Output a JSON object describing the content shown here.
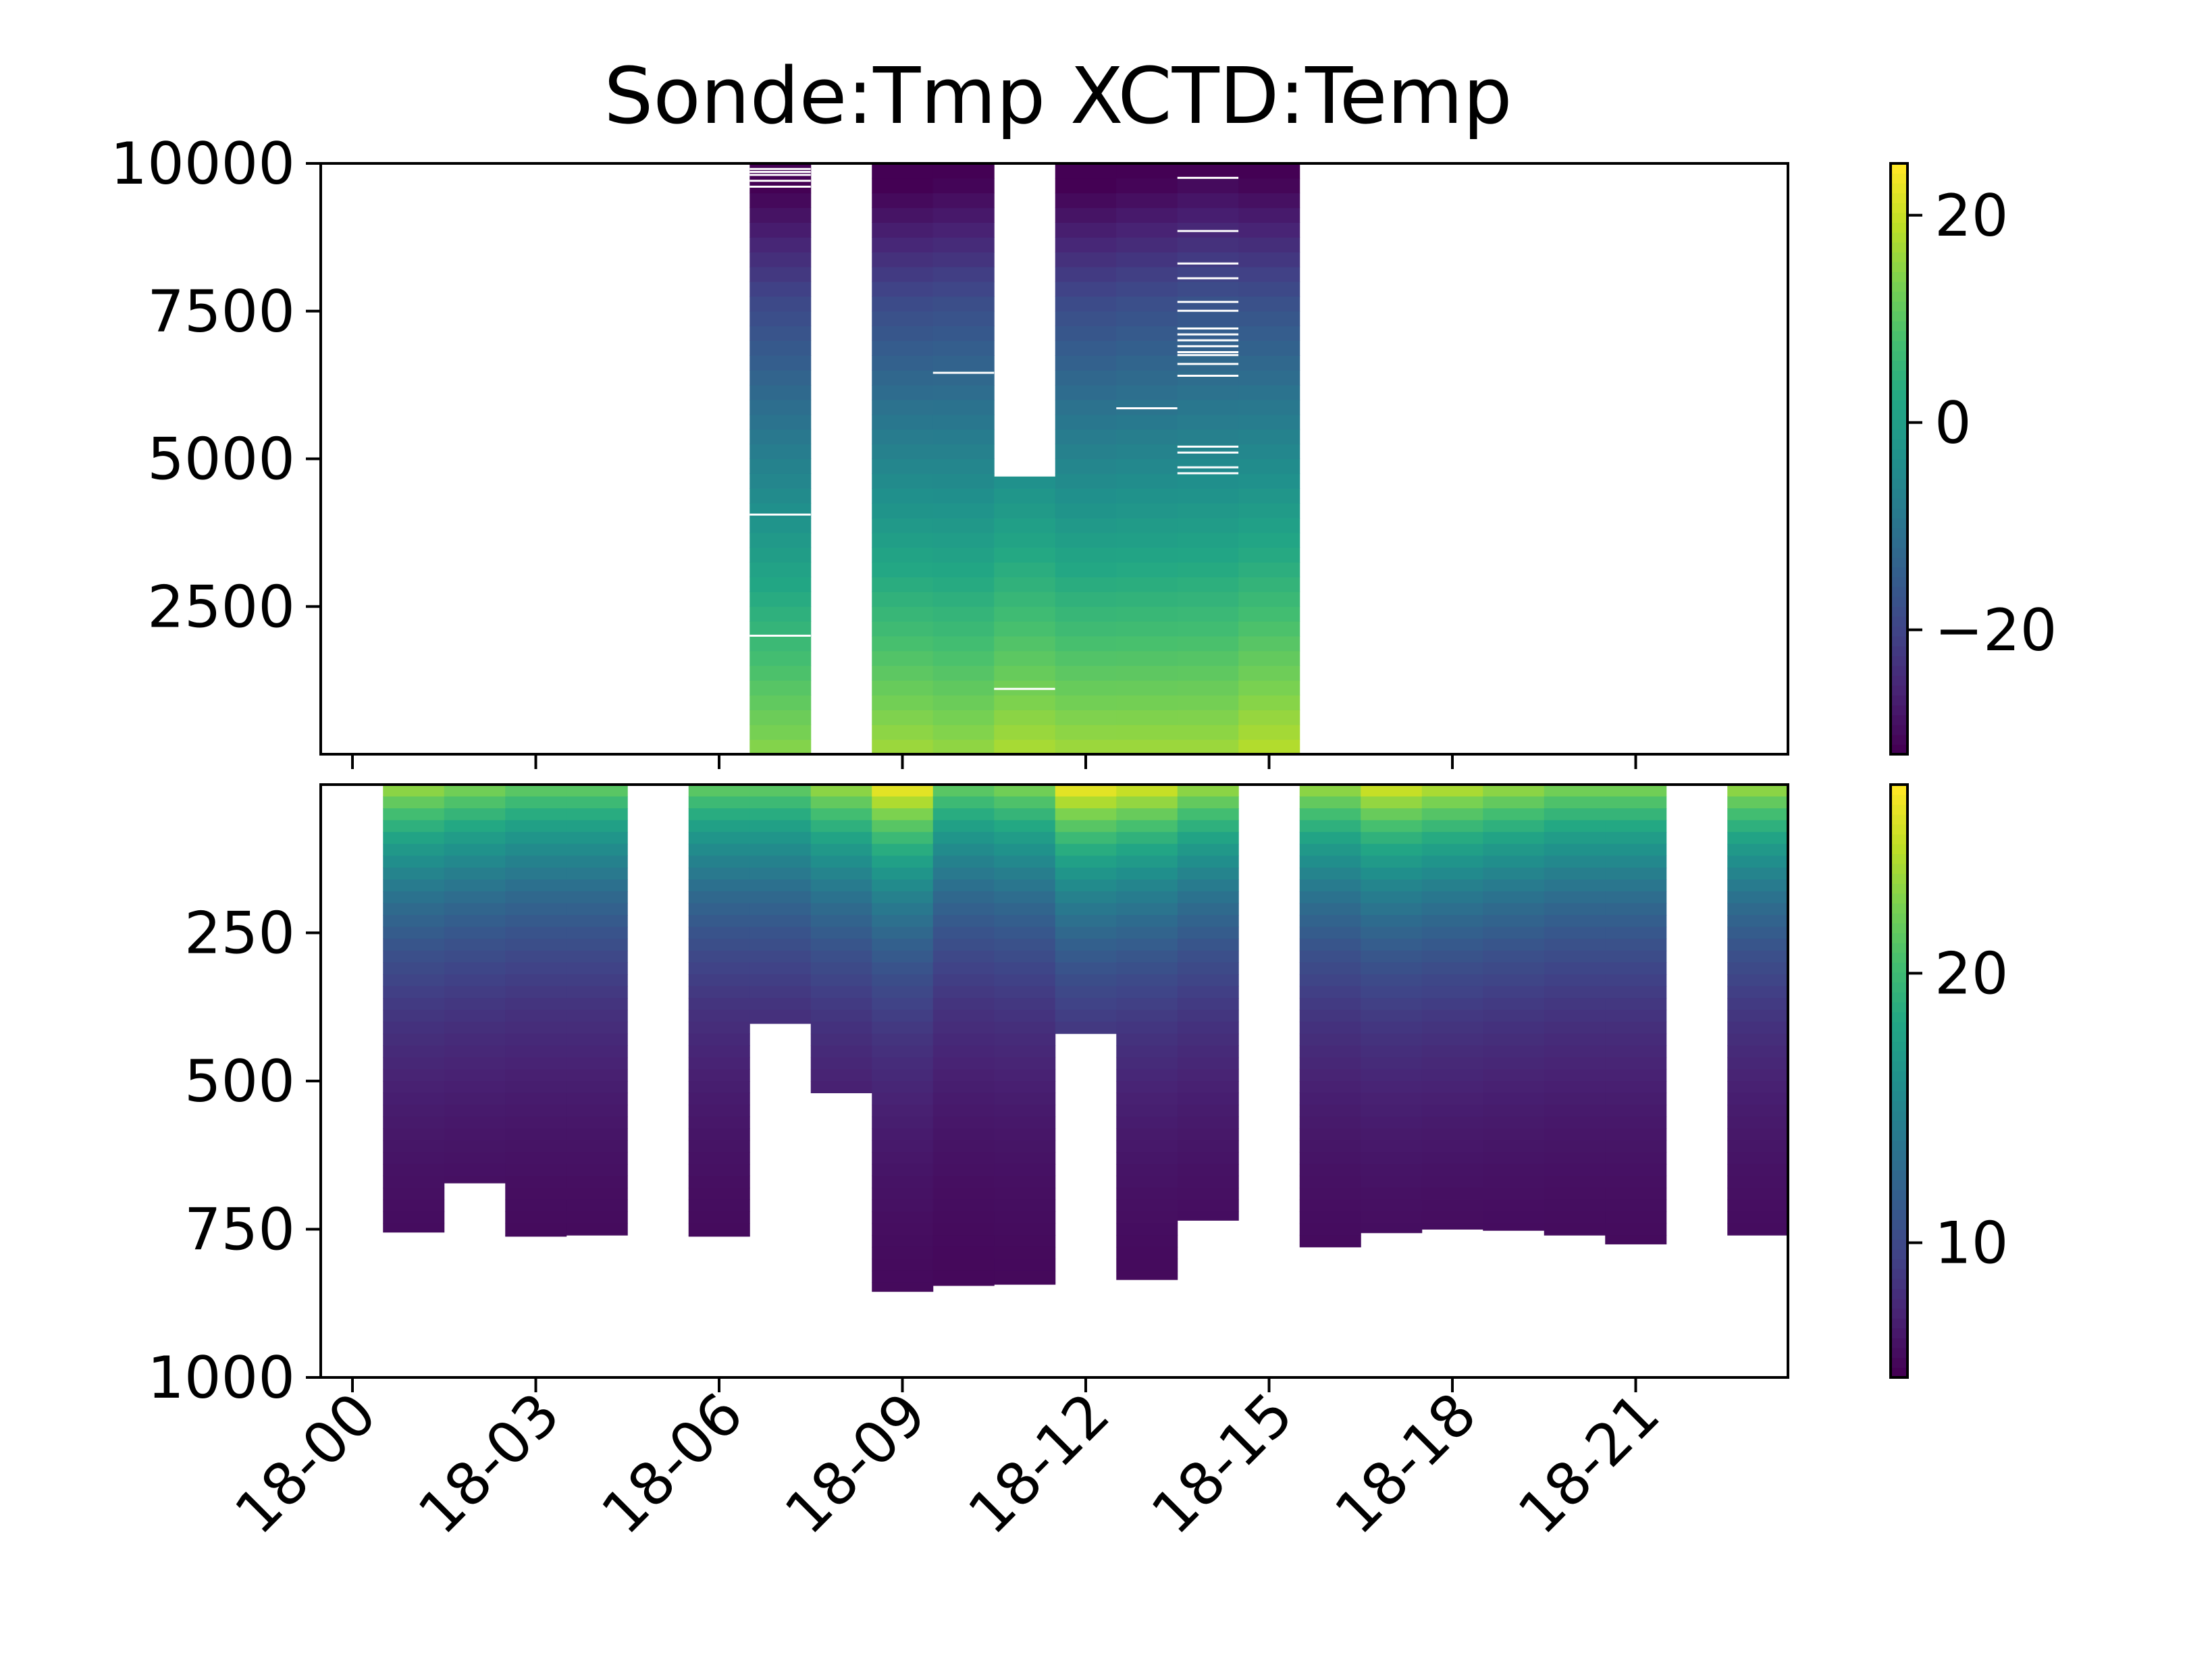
{
  "figure": {
    "title": "Sonde:Tmp XCTD:Temp"
  },
  "chart_data": [
    {
      "type": "heatmap",
      "name": "Sonde:Tmp",
      "colormap": "viridis",
      "x": [
        "18-00",
        "18-01",
        "18-02",
        "18-03",
        "18-04",
        "18-05",
        "18-06",
        "18-07",
        "18-08",
        "18-09",
        "18-10",
        "18-11",
        "18-12",
        "18-13",
        "18-14",
        "18-15",
        "18-16",
        "18-17",
        "18-18",
        "18-19",
        "18-20",
        "18-21",
        "18-22",
        "18-23"
      ],
      "x_tick_labels": [
        "18-00",
        "18-03",
        "18-06",
        "18-09",
        "18-12",
        "18-15",
        "18-18",
        "18-21"
      ],
      "ylim": [
        0,
        10000
      ],
      "y_ticks": [
        2500,
        5000,
        7500,
        10000
      ],
      "clim": [
        -32,
        25
      ],
      "colorbar_ticks": [
        -20,
        0,
        20
      ],
      "profiles": [
        {
          "x": "18-07",
          "top": 10000,
          "surface": 15,
          "lapse": 0.0045,
          "gaps": [
            4050,
            2000,
            9600,
            9700,
            9800,
            9850,
            9900
          ]
        },
        {
          "x": "18-09",
          "top": 10000,
          "surface": 17,
          "lapse": 0.0047,
          "gaps": []
        },
        {
          "x": "18-10",
          "top": 10000,
          "surface": 16,
          "lapse": 0.0045,
          "gaps": [
            6450
          ]
        },
        {
          "x": "18-11",
          "top": 4700,
          "surface": 18,
          "lapse": 0.0046,
          "gaps": [
            1100
          ]
        },
        {
          "x": "18-12",
          "top": 10000,
          "surface": 17,
          "lapse": 0.0047,
          "gaps": []
        },
        {
          "x": "18-13",
          "top": 10000,
          "surface": 17,
          "lapse": 0.0046,
          "gaps": [
            5850
          ]
        },
        {
          "x": "18-14",
          "top": 10000,
          "surface": 17,
          "lapse": 0.0045,
          "gaps": [
            4750,
            4850,
            5100,
            5200,
            6400,
            6600,
            6750,
            6800,
            6900,
            7000,
            7100,
            7200,
            7500,
            7650,
            8050,
            8300,
            8850,
            9750
          ]
        },
        {
          "x": "18-15",
          "top": 10000,
          "surface": 19,
          "lapse": 0.0048,
          "gaps": []
        }
      ]
    },
    {
      "type": "heatmap",
      "name": "XCTD:Temp",
      "colormap": "viridis",
      "x": [
        "18-00",
        "18-01",
        "18-02",
        "18-03",
        "18-04",
        "18-05",
        "18-06",
        "18-07",
        "18-08",
        "18-09",
        "18-10",
        "18-11",
        "18-12",
        "18-13",
        "18-14",
        "18-15",
        "18-16",
        "18-17",
        "18-18",
        "18-19",
        "18-20",
        "18-21",
        "18-22",
        "18-23"
      ],
      "x_tick_labels": [
        "18-00",
        "18-03",
        "18-06",
        "18-09",
        "18-12",
        "18-15",
        "18-18",
        "18-21"
      ],
      "ylim": [
        1000,
        0
      ],
      "y_ticks": [
        250,
        500,
        750,
        1000
      ],
      "clim": [
        5,
        27
      ],
      "colorbar_ticks": [
        10,
        20
      ],
      "profiles": [
        {
          "x": "18-01",
          "bottom": 755,
          "surface": 24
        },
        {
          "x": "18-02",
          "bottom": 672,
          "surface": 23
        },
        {
          "x": "18-03",
          "bottom": 762,
          "surface": 22
        },
        {
          "x": "18-04",
          "bottom": 760,
          "surface": 22
        },
        {
          "x": "18-06",
          "bottom": 762,
          "surface": 22
        },
        {
          "x": "18-07",
          "bottom": 403,
          "surface": 22
        },
        {
          "x": "18-08",
          "bottom": 520,
          "surface": 24
        },
        {
          "x": "18-09",
          "bottom": 855,
          "surface": 27
        },
        {
          "x": "18-10",
          "bottom": 845,
          "surface": 22
        },
        {
          "x": "18-11",
          "bottom": 843,
          "surface": 23
        },
        {
          "x": "18-12",
          "bottom": 420,
          "surface": 27
        },
        {
          "x": "18-13",
          "bottom": 835,
          "surface": 26
        },
        {
          "x": "18-14",
          "bottom": 735,
          "surface": 24
        },
        {
          "x": "18-16",
          "bottom": 780,
          "surface": 24
        },
        {
          "x": "18-17",
          "bottom": 756,
          "surface": 26
        },
        {
          "x": "18-18",
          "bottom": 750,
          "surface": 25
        },
        {
          "x": "18-19",
          "bottom": 752,
          "surface": 24
        },
        {
          "x": "18-20",
          "bottom": 760,
          "surface": 23
        },
        {
          "x": "18-21",
          "bottom": 775,
          "surface": 23
        },
        {
          "x": "18-23",
          "bottom": 760,
          "surface": 24
        }
      ]
    }
  ]
}
